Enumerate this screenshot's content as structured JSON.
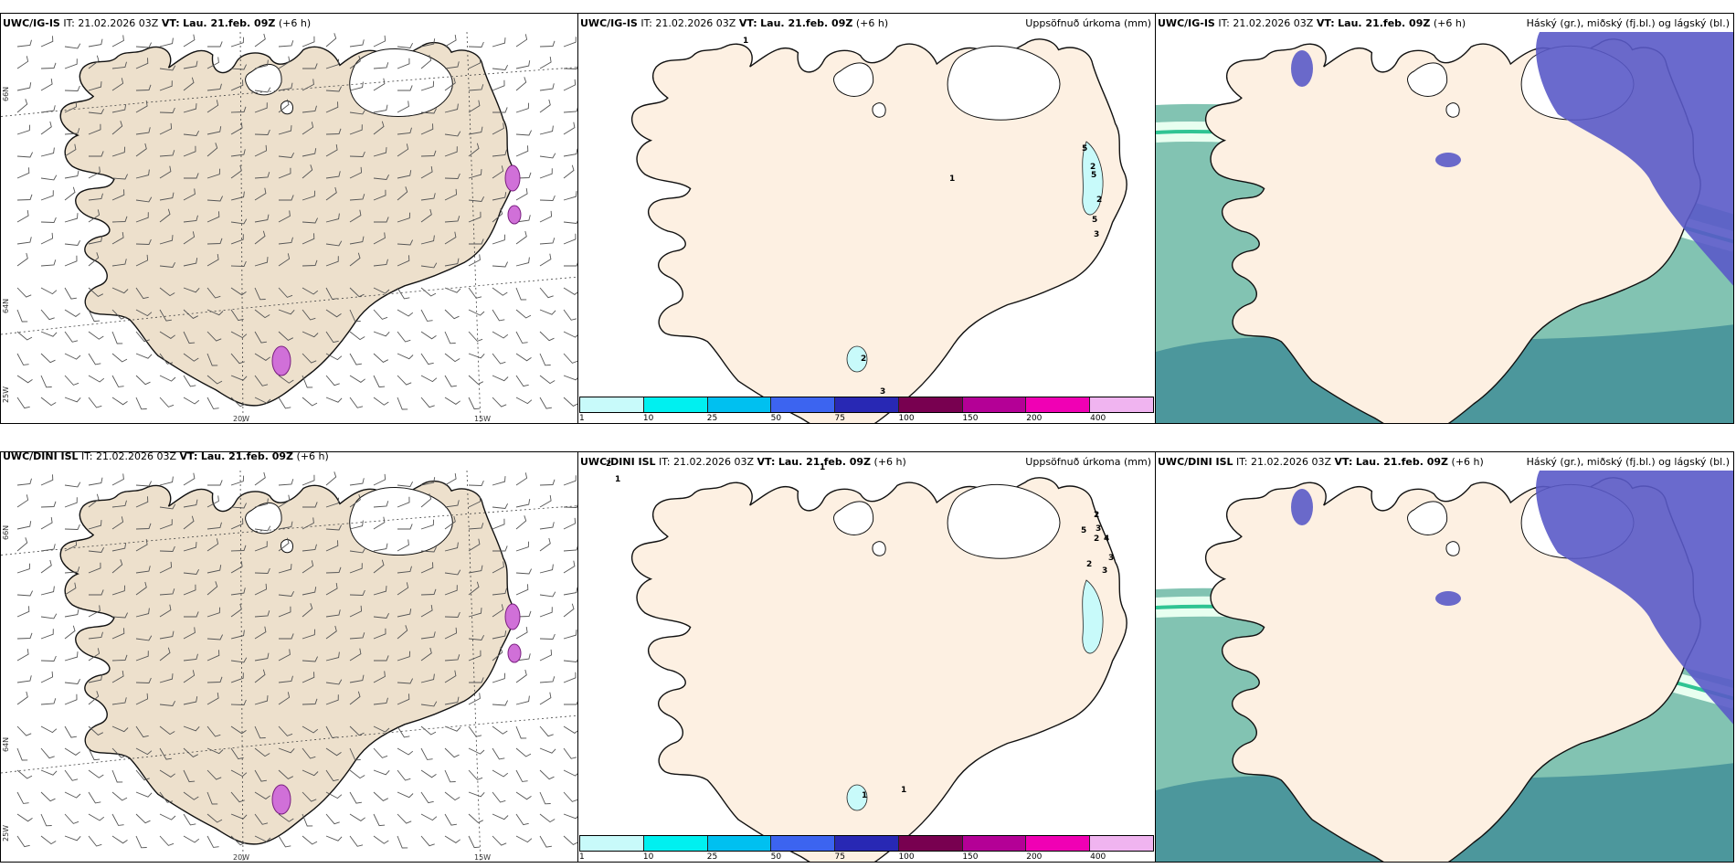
{
  "rows": [
    {
      "model": "UWC/IG-IS",
      "it_label": "IT:",
      "it_value": "21.02.2026 03Z",
      "vt_label": "VT:",
      "vt_value": "Lau. 21.feb. 09Z",
      "offset": "(+6 h)"
    },
    {
      "model": "UWC/DINI ISL",
      "it_label": "IT:",
      "it_value": "21.02.2026 03Z",
      "vt_label": "VT:",
      "vt_value": "Lau. 21.feb. 09Z",
      "offset": "(+6 h)"
    }
  ],
  "titles": {
    "precip": "Uppsöfnuð úrkoma (mm)",
    "clouds": "Háský (gr.), miðský (fj.bl.) og lágský (bl.)"
  },
  "axis_labels": {
    "lat66": "66N",
    "lat64": "64N",
    "lon25": "25W",
    "lon20": "20W",
    "lon15": "15W"
  },
  "precip_legend": {
    "ticks": [
      "1",
      "10",
      "25",
      "50",
      "75",
      "100",
      "150",
      "200",
      "400"
    ],
    "colors": [
      "#c8fafa",
      "#00f0f0",
      "#00c0f0",
      "#3c64f0",
      "#2828b4",
      "#780050",
      "#b40096",
      "#f000b4",
      "#f0b4f0"
    ]
  },
  "precip_marks": {
    "top": [
      "1",
      "2",
      "5",
      "5",
      "2",
      "1",
      "5",
      "3",
      "2",
      "3"
    ],
    "bottom": [
      "1",
      "1",
      "2",
      "2",
      "3",
      "4",
      "2",
      "5",
      "3",
      "3",
      "1",
      "1",
      "2"
    ]
  },
  "colors": {
    "land_wind": "#ede0cc",
    "land_precip": "#fdf0e2",
    "sea": "#ffffff",
    "cloud_high": "#5a5ac8",
    "cloud_mid": "#6cb8a4",
    "cloud_low": "#3e8c96"
  }
}
